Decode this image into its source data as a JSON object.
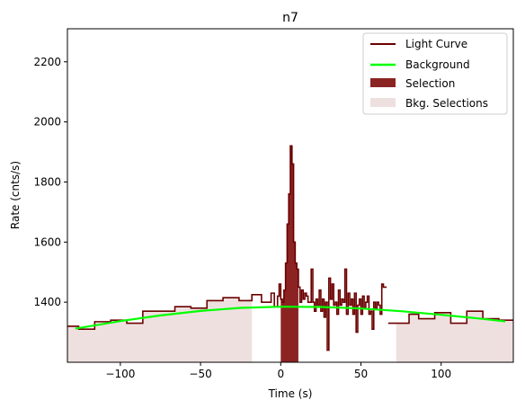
{
  "chart_data": {
    "type": "line",
    "title": "n7",
    "xlabel": "Time (s)",
    "ylabel": "Rate (cnts/s)",
    "xlim": [
      -133,
      145
    ],
    "ylim": [
      1200,
      2310
    ],
    "xticks": [
      -100,
      -50,
      0,
      50,
      100
    ],
    "yticks": [
      1400,
      1600,
      1800,
      2000,
      2200
    ],
    "grid": false,
    "legend_position": "upper right",
    "colors": {
      "light_curve": "#6b0000",
      "background": "#00ff00",
      "selection": "#8b2323",
      "bkg_selection": "#efe0e0"
    },
    "series": [
      {
        "name": "Light Curve",
        "style": "step",
        "coarse_steps": [
          [
            -133,
            1320
          ],
          [
            -126,
            1310
          ],
          [
            -116,
            1335
          ],
          [
            -106,
            1340
          ],
          [
            -96,
            1330
          ],
          [
            -86,
            1370
          ],
          [
            -76,
            1370
          ],
          [
            -66,
            1385
          ],
          [
            -56,
            1380
          ],
          [
            -46,
            1405
          ],
          [
            -36,
            1415
          ],
          [
            -26,
            1405
          ],
          [
            -18,
            1425
          ],
          [
            -12,
            1400
          ],
          [
            -6,
            1430
          ],
          [
            -4,
            1385
          ],
          [
            -2,
            1420
          ]
        ],
        "fine_steps": [
          [
            -2,
            1420
          ],
          [
            -1,
            1460
          ],
          [
            0,
            1410
          ],
          [
            1,
            1400
          ],
          [
            2,
            1440
          ],
          [
            3,
            1530
          ],
          [
            4,
            1660
          ],
          [
            5,
            1760
          ],
          [
            6,
            1920
          ],
          [
            7,
            1860
          ],
          [
            8,
            1600
          ],
          [
            9,
            1530
          ],
          [
            10,
            1510
          ],
          [
            11,
            1450
          ],
          [
            12,
            1400
          ],
          [
            13,
            1440
          ],
          [
            14,
            1410
          ],
          [
            15,
            1430
          ],
          [
            16,
            1420
          ],
          [
            17,
            1400
          ],
          [
            18,
            1400
          ],
          [
            19,
            1510
          ],
          [
            20,
            1400
          ],
          [
            21,
            1370
          ],
          [
            22,
            1410
          ],
          [
            23,
            1390
          ],
          [
            24,
            1440
          ],
          [
            25,
            1370
          ],
          [
            26,
            1410
          ],
          [
            27,
            1350
          ],
          [
            28,
            1400
          ],
          [
            29,
            1240
          ],
          [
            30,
            1480
          ],
          [
            31,
            1410
          ],
          [
            32,
            1460
          ],
          [
            33,
            1390
          ],
          [
            34,
            1400
          ],
          [
            35,
            1360
          ],
          [
            36,
            1440
          ],
          [
            37,
            1390
          ],
          [
            38,
            1410
          ],
          [
            39,
            1400
          ],
          [
            40,
            1510
          ],
          [
            41,
            1360
          ],
          [
            42,
            1430
          ],
          [
            43,
            1390
          ],
          [
            44,
            1410
          ],
          [
            45,
            1360
          ],
          [
            46,
            1430
          ],
          [
            47,
            1300
          ],
          [
            48,
            1390
          ],
          [
            49,
            1410
          ],
          [
            50,
            1360
          ],
          [
            51,
            1420
          ],
          [
            52,
            1380
          ],
          [
            53,
            1400
          ],
          [
            54,
            1420
          ],
          [
            55,
            1360
          ],
          [
            56,
            1370
          ],
          [
            57,
            1310
          ],
          [
            58,
            1400
          ],
          [
            59,
            1380
          ],
          [
            60,
            1400
          ],
          [
            61,
            1390
          ],
          [
            62,
            1360
          ],
          [
            63,
            1460
          ],
          [
            64,
            1450
          ],
          [
            65,
            1450
          ]
        ],
        "tail_steps": [
          [
            67,
            1330
          ],
          [
            76,
            1330
          ],
          [
            80,
            1360
          ],
          [
            86,
            1345
          ],
          [
            96,
            1365
          ],
          [
            106,
            1330
          ],
          [
            116,
            1370
          ],
          [
            126,
            1345
          ],
          [
            136,
            1340
          ],
          [
            145,
            1340
          ]
        ]
      },
      {
        "name": "Background",
        "style": "line",
        "x": [
          -128,
          -100,
          -75,
          -50,
          -25,
          0,
          25,
          50,
          75,
          100,
          125,
          140
        ],
        "y": [
          1312,
          1337,
          1356,
          1371,
          1381,
          1385,
          1384,
          1379,
          1370,
          1358,
          1345,
          1336
        ]
      }
    ],
    "selection": {
      "name": "Selection",
      "x": [
        0,
        11
      ]
    },
    "bkg_selections": {
      "name": "Bkg. Selections",
      "ranges": [
        [
          -133,
          -18
        ],
        [
          72,
          145
        ]
      ]
    }
  }
}
